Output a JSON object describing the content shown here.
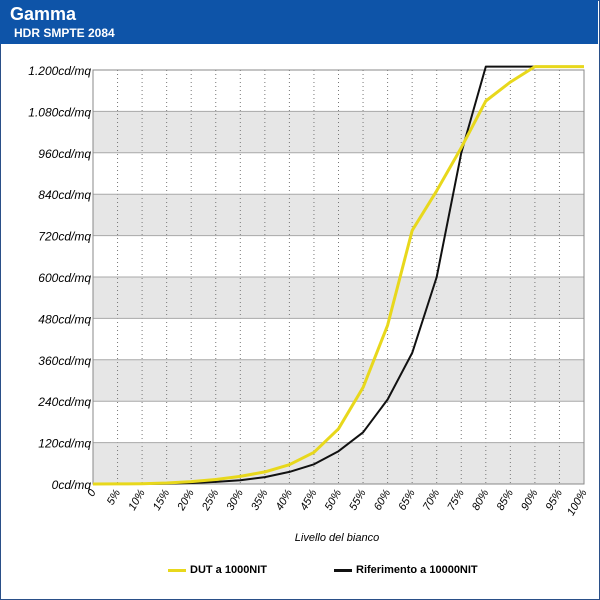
{
  "header": {
    "title": "Gamma",
    "subtitle": "HDR SMPTE 2084"
  },
  "colors": {
    "header_bg": "#0e54a8",
    "band": "#e6e6e6",
    "dut_series": "#e8d81c",
    "ref_series": "#111111"
  },
  "chart_data": {
    "type": "line",
    "xlabel": "Livello del bianco",
    "ylabel": "",
    "x": [
      "0",
      "5%",
      "10%",
      "15%",
      "20%",
      "25%",
      "30%",
      "35%",
      "40%",
      "45%",
      "50%",
      "55%",
      "60%",
      "65%",
      "70%",
      "75%",
      "80%",
      "85%",
      "90%",
      "95%",
      "100%"
    ],
    "y_ticks": [
      "0cd/mq",
      "120cd/mq",
      "240cd/mq",
      "360cd/mq",
      "480cd/mq",
      "600cd/mq",
      "720cd/mq",
      "840cd/mq",
      "960cd/mq",
      "1.080cd/mq",
      "1.200cd/mq"
    ],
    "ylim": [
      0,
      1200
    ],
    "grid": true,
    "legend_position": "bottom",
    "series": [
      {
        "name": "DUT a 1000NIT",
        "color": "#e8d81c",
        "values": [
          0,
          0.3,
          1,
          3,
          7,
          13,
          22,
          35,
          56,
          92,
          160,
          280,
          460,
          735,
          850,
          975,
          1110,
          1165,
          1210,
          1210,
          1210
        ]
      },
      {
        "name": "Riferimento a 10000NIT",
        "color": "#111111",
        "values": [
          0,
          0.1,
          0.3,
          1,
          3,
          6,
          11,
          20,
          35,
          57,
          95,
          150,
          245,
          380,
          600,
          960,
          1210,
          1210,
          1210,
          1210,
          1210
        ]
      }
    ]
  }
}
